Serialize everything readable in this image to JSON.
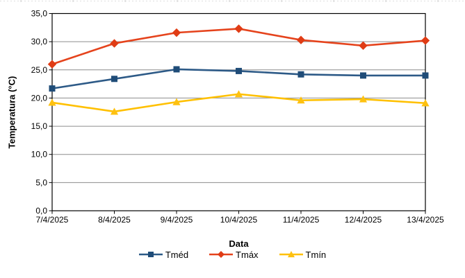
{
  "chart_data": {
    "type": "line",
    "title": "",
    "xlabel": "Data",
    "ylabel": "Temperatura (°C)",
    "categories": [
      "7/4/2025",
      "8/4/2025",
      "9/4/2025",
      "10/4/2025",
      "11/4/2025",
      "12/4/2025",
      "13/4/2025"
    ],
    "series": [
      {
        "name": "Tméd",
        "marker": "square",
        "color": "#2D5A87",
        "marker_color": "#1F4C78",
        "values": [
          21.7,
          23.4,
          25.1,
          24.8,
          24.2,
          24.0,
          24.0
        ]
      },
      {
        "name": "Tmáx",
        "marker": "diamond",
        "color": "#E5431C",
        "marker_color": "#E03C15",
        "values": [
          26.0,
          29.7,
          31.6,
          32.3,
          30.3,
          29.3,
          30.2
        ]
      },
      {
        "name": "Tmín",
        "marker": "triangle",
        "color": "#FFC000",
        "marker_color": "#FEC110",
        "values": [
          19.2,
          17.6,
          19.3,
          20.7,
          19.6,
          19.8,
          19.1
        ]
      }
    ],
    "ylim": [
      0,
      35
    ],
    "ytick_step": 5,
    "ytick_labels": [
      "0,0",
      "5,0",
      "10,0",
      "15,0",
      "20,0",
      "25,0",
      "30,0",
      "35,0"
    ],
    "grid": "horizontal",
    "gridline_color": "#8C8C8C",
    "axis_color": "#000000",
    "text_color": "#000000",
    "background": "#FFFFFF",
    "legend_position": "bottom"
  }
}
